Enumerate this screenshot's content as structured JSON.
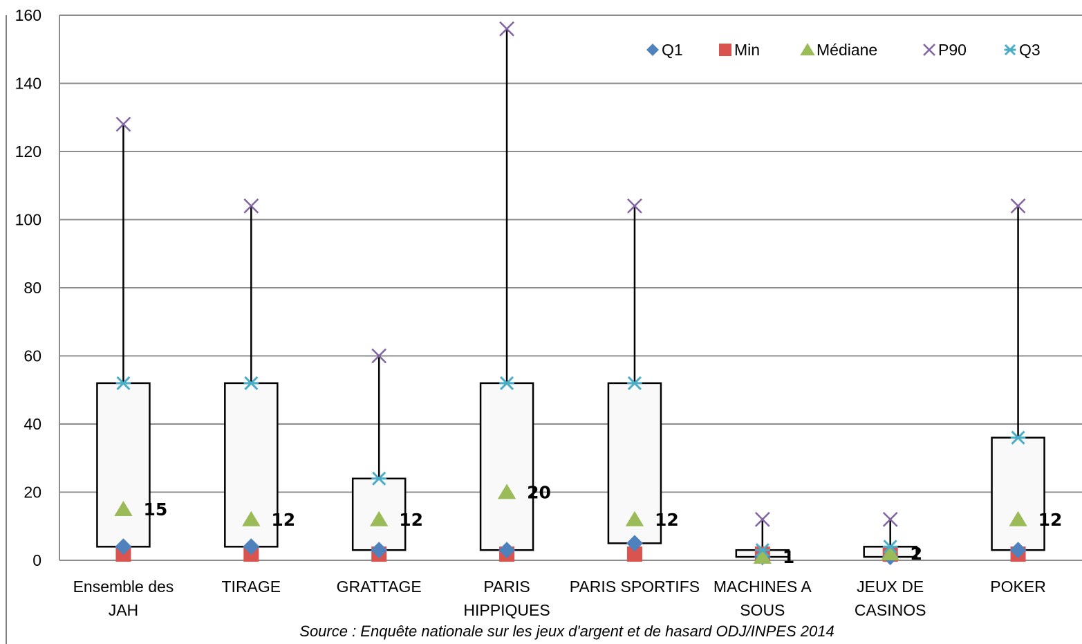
{
  "chart_data": {
    "type": "box",
    "categories": [
      [
        "Ensemble des",
        "JAH"
      ],
      [
        "TIRAGE"
      ],
      [
        "GRATTAGE"
      ],
      [
        "PARIS",
        "HIPPIQUES"
      ],
      [
        "PARIS SPORTIFS"
      ],
      [
        "MACHINES A",
        "SOUS"
      ],
      [
        "JEUX DE",
        "CASINOS"
      ],
      [
        "POKER"
      ]
    ],
    "series": [
      {
        "name": "Q1",
        "values": [
          4,
          4,
          3,
          3,
          5,
          1,
          1,
          3
        ]
      },
      {
        "name": "Min",
        "values": [
          1,
          1,
          1,
          1,
          1,
          1,
          1,
          1
        ]
      },
      {
        "name": "Médiane",
        "values": [
          15,
          12,
          12,
          20,
          12,
          1,
          2,
          12
        ]
      },
      {
        "name": "P90",
        "values": [
          128,
          104,
          60,
          156,
          104,
          12,
          12,
          104
        ]
      },
      {
        "name": "Q3",
        "values": [
          52,
          52,
          24,
          52,
          52,
          3,
          4,
          36
        ]
      }
    ],
    "data_labels": [
      "15",
      "12",
      "12",
      "20",
      "12",
      "1",
      "2",
      "12"
    ],
    "yticks": [
      "0",
      "20",
      "40",
      "60",
      "80",
      "100",
      "120",
      "140",
      "160"
    ],
    "ylim": [
      0,
      160
    ],
    "grid": true,
    "legend_position": "top-right",
    "colors": {
      "Q1": "#4f81bd",
      "Min": "#d9534f",
      "Médiane": "#9bbb59",
      "P90": "#8064a2",
      "Q3": "#4bacc6",
      "box_fill": "#f9f9f9",
      "grid": "#8c8c8c"
    }
  },
  "source_text": "Source : Enquête nationale sur les jeux d'argent et de hasard ODJ/INPES 2014"
}
